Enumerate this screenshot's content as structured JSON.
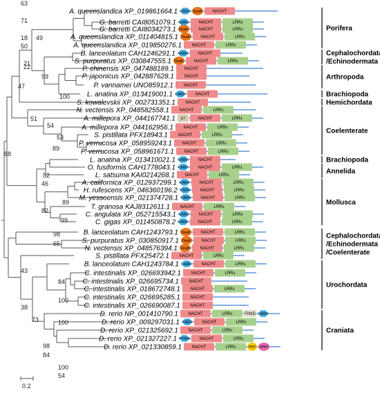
{
  "colors": {
    "nacht": "#f08a8a",
    "lrr": "#a8d08d",
    "card": "#3fa9e0",
    "death": "#e8751a",
    "gt": "#d9cbb4",
    "fiind": "#e6e0d0",
    "pyd": "#f5c800",
    "spry": "#e86ab0",
    "line": "#3b7fd4",
    "branch": "#555555"
  },
  "taxa": [
    {
      "name": "A. queenslandica XP_019861664.1",
      "domains": [
        "CARD",
        "Death",
        "NACHT"
      ],
      "tail": 60
    },
    {
      "name": "G. barretti CAI8051079.1",
      "domains": [
        "CARD",
        "NACHT",
        "LRRs"
      ]
    },
    {
      "name": "G. barretti CAI8034273.1",
      "domains": [
        "Death",
        "NACHT",
        "LRRs"
      ]
    },
    {
      "name": "A. queenslandica XP_011404815.1",
      "domains": [
        "Death",
        "NACHT",
        "LRRs"
      ]
    },
    {
      "name": "A. queenslandica XP_019850276.1",
      "domains": [
        "NACHT",
        "LRRs"
      ]
    },
    {
      "name": "B. lanceolatum CAH1246291.1",
      "domains": [
        "CARD",
        "NACHT"
      ],
      "tail": 30
    },
    {
      "name": "S. purpuratus XP_030847555.1",
      "domains": [
        "Death",
        "NACHT",
        "LRRs"
      ]
    },
    {
      "name": "P. chinensis XP_047488189.1",
      "domains": [
        "NACHT"
      ],
      "tail": 80
    },
    {
      "name": "P. japonicus XP_042887628.1",
      "domains": [
        "NACHT"
      ],
      "tail": 60
    },
    {
      "name": "P. vannamei UNO85912.1",
      "domains": [
        "NACHT"
      ],
      "tail": 70
    },
    {
      "name": "L. anatina XP_013419001.1",
      "domains": [
        "CARD",
        "NACHT"
      ],
      "tail": 70
    },
    {
      "name": "S. kowalevskii XP_002731351.1",
      "domains": [
        "NACHT"
      ],
      "tail": 60
    },
    {
      "name": "N. vectensis XP_048582558.1",
      "domains": [
        "NACHT",
        "LRRs"
      ],
      "tail": 30
    },
    {
      "name": "A. millepora XP_044167741.1",
      "domains": [
        "GT",
        "NACHT",
        "LRRs"
      ]
    },
    {
      "name": "A. millepora XP_044162956.1",
      "domains": [
        "NACHT",
        "LRRs"
      ]
    },
    {
      "name": "S. pistillata PFX18943.1",
      "domains": [
        "NACHT",
        "LRRs"
      ]
    },
    {
      "name": "P. verrucosa XP_058959243.1",
      "domains": [
        "NACHT",
        "LRRs"
      ]
    },
    {
      "name": "P. verrucosa XP_058961671.1",
      "domains": [
        "NACHT",
        "LRRs"
      ]
    },
    {
      "name": "L. anatina XP_013410021.1",
      "domains": [
        "CARD",
        "NACHT"
      ],
      "tail": 20
    },
    {
      "name": "O. fusiformis CAH1778043.1",
      "domains": [
        "CARD",
        "NACHT",
        "LRRs"
      ]
    },
    {
      "name": "L. satsuma KAI0214268.1",
      "domains": [
        "NACHT",
        "LRRs"
      ]
    },
    {
      "name": "A. californica XP_012937299.1",
      "domains": [
        "CARD",
        "NACHT",
        "LRRs"
      ]
    },
    {
      "name": "H. rufescens XP_046360196.2",
      "domains": [
        "CARD",
        "NACHT",
        "LRRs"
      ]
    },
    {
      "name": "M. yessoensis XP_021374728.1",
      "domains": [
        "CARD",
        "NACHT",
        "LRRs"
      ]
    },
    {
      "name": "T. granosa KAJ8312611.1",
      "domains": [
        "NACHT",
        "LRRs"
      ]
    },
    {
      "name": "C. angulata XP_052715543.1",
      "domains": [
        "CARD",
        "NACHT",
        "LRRs"
      ]
    },
    {
      "name": "C. gigas XP_011450878.2",
      "domains": [
        "CARD",
        "NACHT",
        "LRRs"
      ]
    },
    {
      "name": "B. lanceolatum CAH1243793.1",
      "domains": [
        "Death",
        "NACHT",
        "LRRs"
      ]
    },
    {
      "name": "S. purpuratus XP_030850917.1",
      "domains": [
        "Death",
        "NACHT",
        "LRRs"
      ]
    },
    {
      "name": "N. vectensis XP_048576394.1",
      "domains": [
        "Death",
        "NACHT",
        "LRRs"
      ]
    },
    {
      "name": "S. pistillata PFX25472.1",
      "domains": [
        "NACHT",
        "LRRs"
      ]
    },
    {
      "name": "B. lanceolatum CAH1243784.1",
      "domains": [
        "CARD",
        "NACHT",
        "LRRs"
      ]
    },
    {
      "name": "C. intestinalis XP_026693942.1",
      "domains": [
        "NACHT",
        "LRRs"
      ]
    },
    {
      "name": "C. intestinalis XP_026695734.1",
      "domains": [
        "NACHT"
      ],
      "tail": 50
    },
    {
      "name": "C. intestinalis XP_018672748.1",
      "domains": [
        "NACHT",
        "LRRs"
      ]
    },
    {
      "name": "C. intestinalis XP_026695285.1",
      "domains": [
        "NACHT"
      ],
      "tail": 50
    },
    {
      "name": "C. intestinalis XP_026690087.1",
      "domains": [
        "NACHT"
      ],
      "tail": 50
    },
    {
      "name": "D. rerio NP_001410790.1",
      "domains": [
        "NACHT",
        "LRRs",
        "FIIND",
        "CARD"
      ]
    },
    {
      "name": "D. rerio XP_009297031.1",
      "domains": [
        "CARD",
        "NACHT",
        "LRRs"
      ]
    },
    {
      "name": "D. rerio XP_021325692.1",
      "domains": [
        "NACHT",
        "LRRs"
      ]
    },
    {
      "name": "D. rerio XP_021327227.1",
      "domains": [
        "PYRIN",
        "NACHT",
        "LRRs"
      ]
    },
    {
      "name": "D. rerio XP_021330859.1",
      "domains": [
        "NACHT",
        "LRRs",
        "PRY",
        "SPRY"
      ]
    }
  ],
  "groups": [
    {
      "label": "Porifera",
      "from": 0,
      "to": 4
    },
    {
      "label": "Cephalochordata\n/Echinodermata",
      "from": 5,
      "to": 6
    },
    {
      "label": "Arthropoda",
      "from": 7,
      "to": 9
    },
    {
      "label": "Brachiopoda",
      "from": 10,
      "to": 10
    },
    {
      "label": "Hemichordata",
      "from": 11,
      "to": 11
    },
    {
      "label": "Coelenterate",
      "from": 12,
      "to": 17
    },
    {
      "label": "Brachiopoda",
      "from": 18,
      "to": 18
    },
    {
      "label": "Annelida",
      "from": 19,
      "to": 20
    },
    {
      "label": "Mollusca",
      "from": 21,
      "to": 26
    },
    {
      "label": "Cephalochordata\n/Echinodermata\n/Coelenterate",
      "from": 27,
      "to": 30
    },
    {
      "label": "Urochordata",
      "from": 31,
      "to": 36
    },
    {
      "label": "Craniata",
      "from": 37,
      "to": 41
    }
  ],
  "support_values": [
    {
      "value": "63",
      "node": "n0"
    },
    {
      "value": "71",
      "node": "n1"
    },
    {
      "value": "18",
      "node": "n2"
    },
    {
      "value": "49",
      "node": "n3"
    },
    {
      "value": "50",
      "node": "n5"
    },
    {
      "value": "21",
      "node": "n6"
    },
    {
      "value": "22",
      "node": "n6b"
    },
    {
      "value": "99",
      "node": "n7"
    },
    {
      "value": "100",
      "node": "n8"
    },
    {
      "value": "47",
      "node": "n9"
    },
    {
      "value": "51",
      "node": "n12"
    },
    {
      "value": "54",
      "node": "n13"
    },
    {
      "value": "53",
      "node": "n14"
    },
    {
      "value": "89",
      "node": "n15"
    },
    {
      "value": "88",
      "node": "root1"
    },
    {
      "value": "52",
      "node": "n18"
    },
    {
      "value": "46",
      "node": "n19"
    },
    {
      "value": "89",
      "node": "n21"
    },
    {
      "value": "82",
      "node": "n20"
    },
    {
      "value": "99",
      "node": "n23"
    },
    {
      "value": "98",
      "node": "n25"
    },
    {
      "value": "65",
      "node": "n26"
    },
    {
      "value": "43",
      "node": "n27"
    },
    {
      "value": "38",
      "node": "n28"
    },
    {
      "value": "84",
      "node": "n31"
    },
    {
      "value": "100",
      "node": "n32"
    },
    {
      "value": "73",
      "node": "n30"
    },
    {
      "value": "100",
      "node": "n37"
    },
    {
      "value": "98",
      "node": "n36"
    },
    {
      "value": "84",
      "node": "n38"
    },
    {
      "value": "100",
      "node": "n39"
    },
    {
      "value": "54",
      "node": "n40"
    }
  ],
  "scale_bar": "0.2"
}
